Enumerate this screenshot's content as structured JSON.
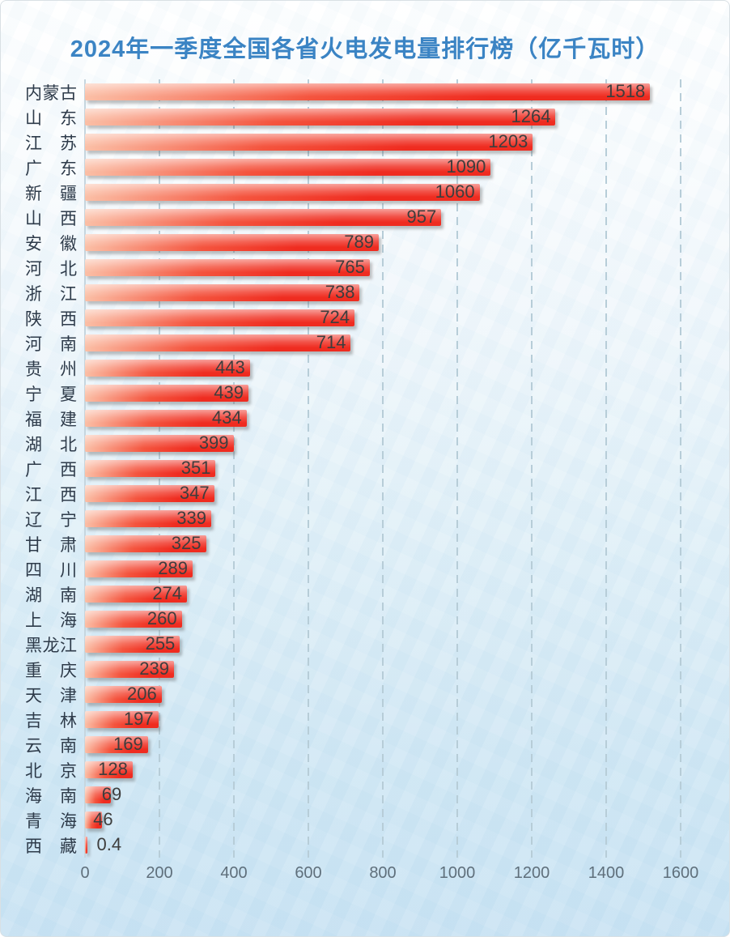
{
  "title": "2024年一季度全国各省火电发电量排行榜（亿千瓦时）",
  "chart_data": {
    "type": "bar",
    "orientation": "horizontal",
    "title": "2024年一季度全国各省火电发电量排行榜（亿千瓦时）",
    "unit": "亿千瓦时",
    "categories": [
      "内蒙古",
      "山东",
      "江苏",
      "广东",
      "新疆",
      "山西",
      "安徽",
      "河北",
      "浙江",
      "陕西",
      "河南",
      "贵州",
      "宁夏",
      "福建",
      "湖北",
      "广西",
      "江西",
      "辽宁",
      "甘肃",
      "四川",
      "湖南",
      "上海",
      "黑龙江",
      "重庆",
      "天津",
      "吉林",
      "云南",
      "北京",
      "海南",
      "青海",
      "西藏"
    ],
    "values": [
      1518,
      1264,
      1203,
      1090,
      1060,
      957,
      789,
      765,
      738,
      724,
      714,
      443,
      439,
      434,
      399,
      351,
      347,
      339,
      325,
      289,
      274,
      260,
      255,
      239,
      206,
      197,
      169,
      128,
      69,
      46,
      0.4
    ],
    "value_labels": [
      "1518",
      "1264",
      "1203",
      "1090",
      "1060",
      "957",
      "789",
      "765",
      "738",
      "724",
      "714",
      "443",
      "439",
      "434",
      "399",
      "351",
      "347",
      "339",
      "325",
      "289",
      "274",
      "260",
      "255",
      "239",
      "206",
      "197",
      "169",
      "128",
      "69",
      "46",
      "0.4"
    ],
    "xlim": [
      0,
      1600
    ],
    "x_ticks": [
      0,
      200,
      400,
      600,
      800,
      1000,
      1200,
      1400,
      1600
    ],
    "grid": "vertical-dashed",
    "legend": "none",
    "colors": {
      "title": "#3b84c4",
      "bar_light": "#fbbfa6",
      "bar_mid": "#f4543e",
      "bar_dark": "#ef2c20",
      "category_label": "#2e3b4a",
      "value_label": "#3d3d3d",
      "tick_label": "#5f6f7b",
      "gridline": "#b7cdd8",
      "axis_line": "#c6d6df",
      "background_top": "#ffffff",
      "background_bottom": "#c9e3f3"
    }
  }
}
